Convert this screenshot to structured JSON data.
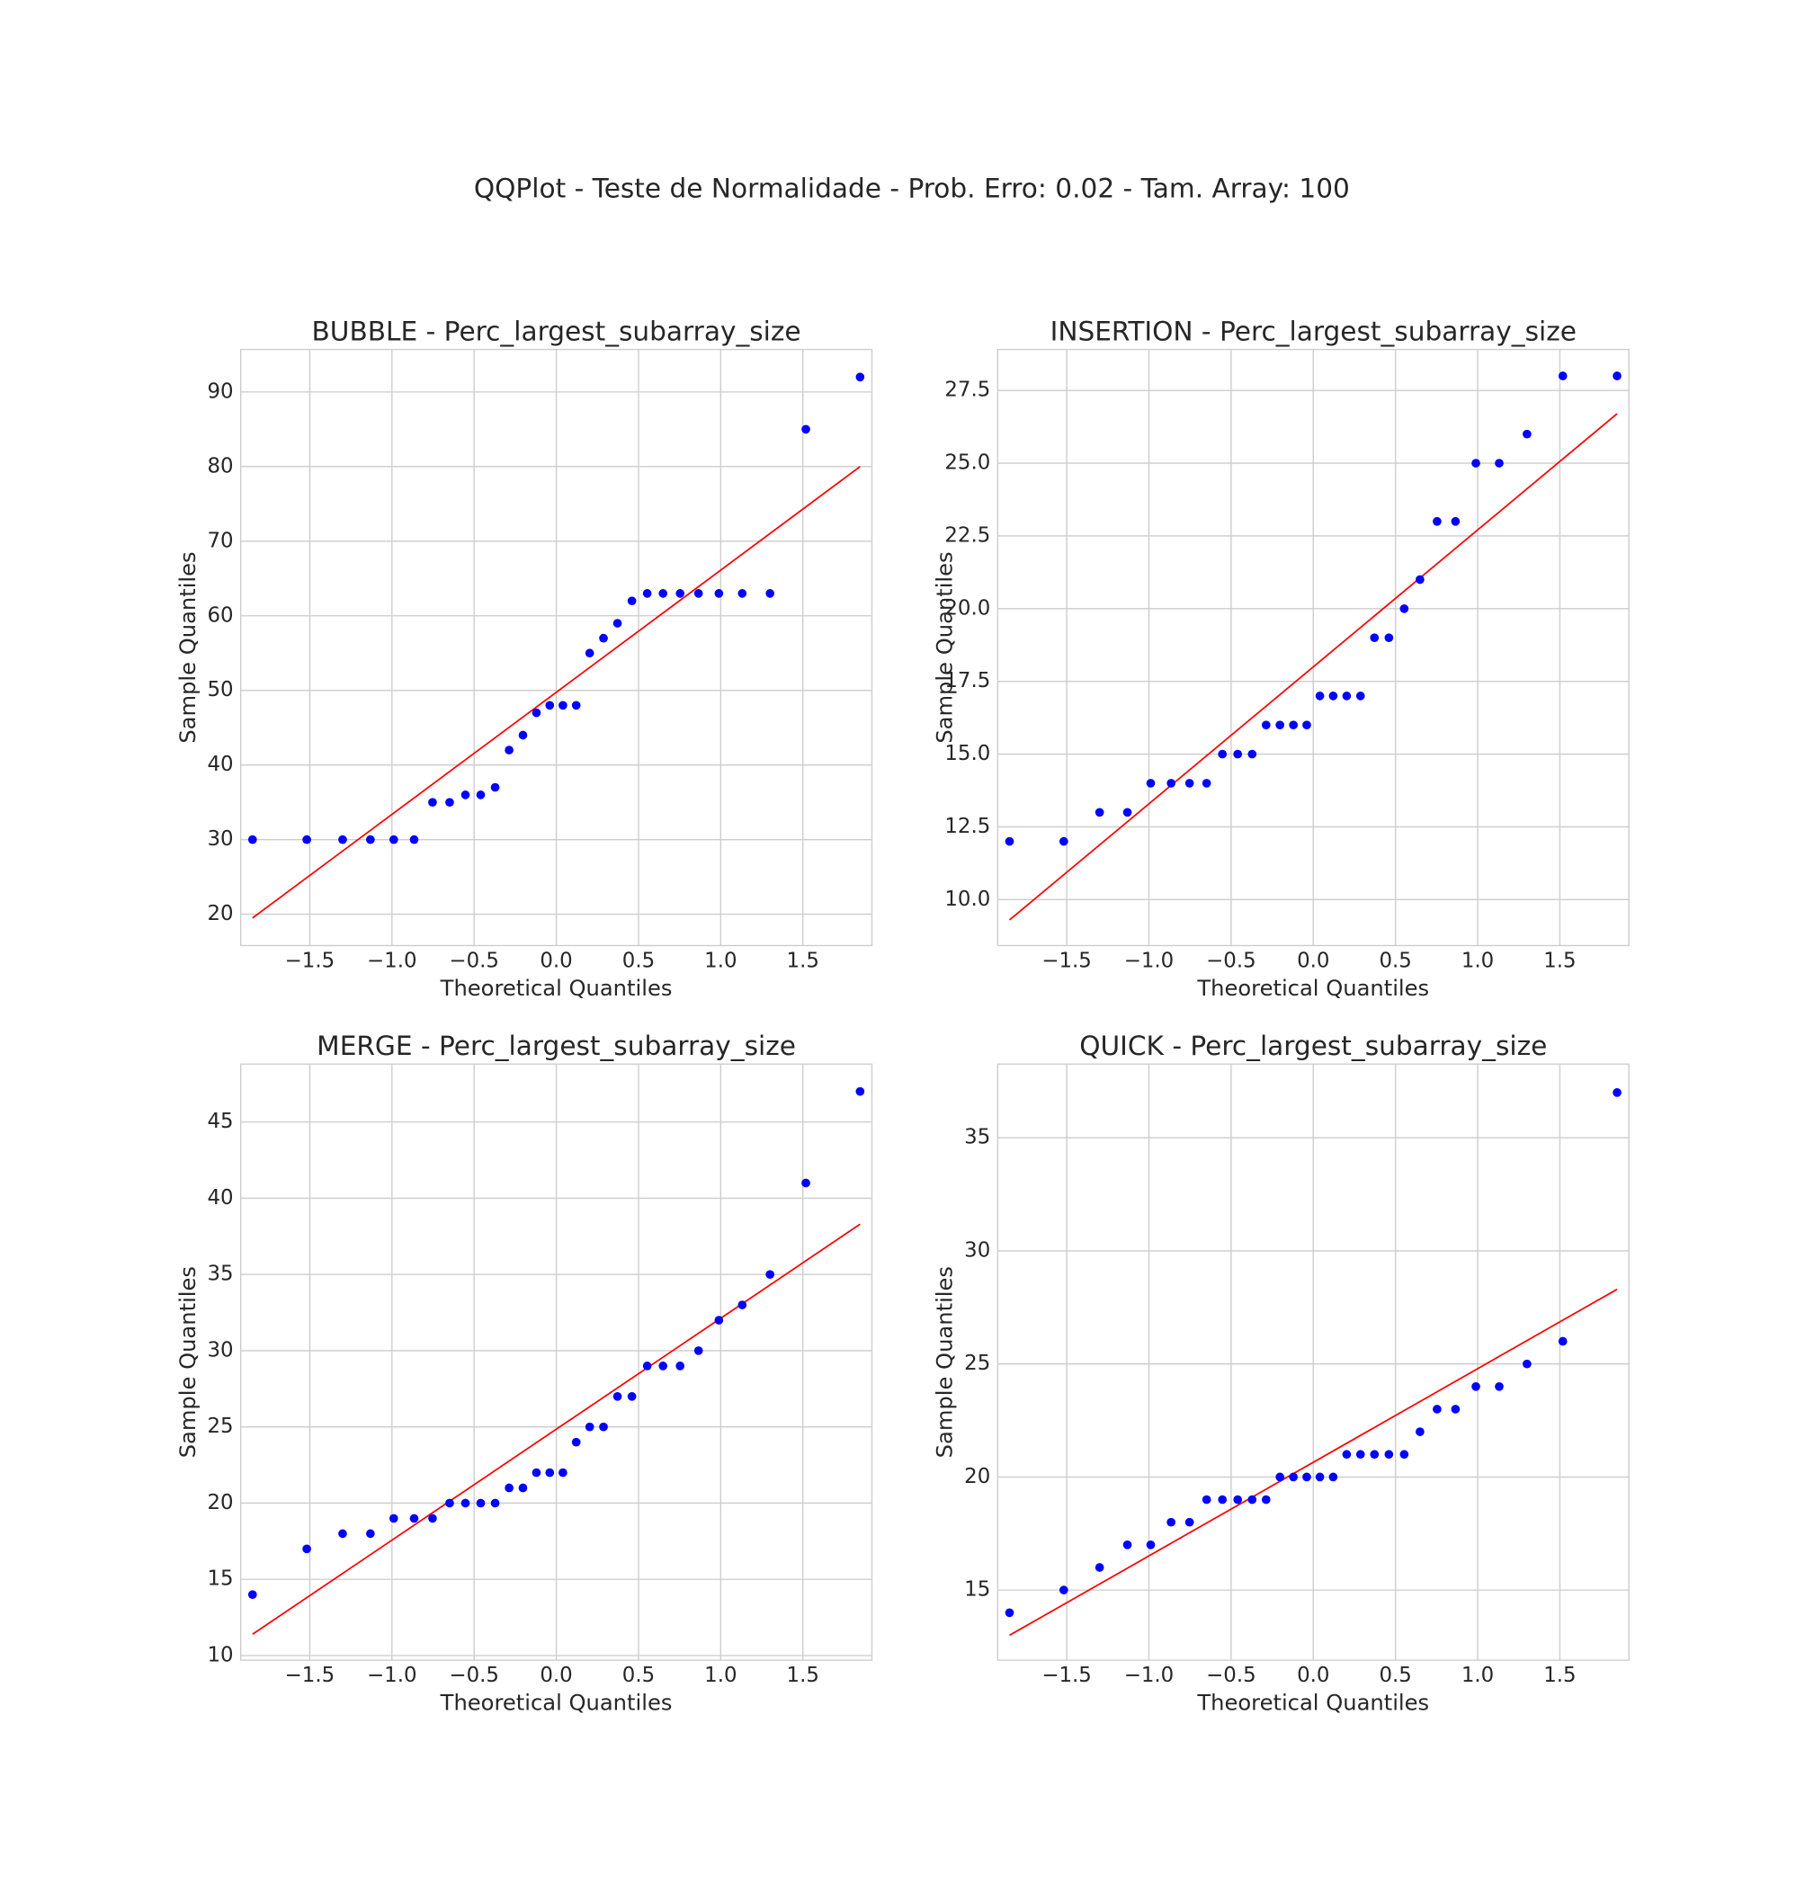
{
  "title": "QQPlot - Teste de Normalidade - Prob. Erro: 0.02 - Tam. Array: 100",
  "chart_data": [
    {
      "type": "scatter",
      "title": "BUBBLE - Perc_largest_subarray_size",
      "xlabel": "Theoretical Quantiles",
      "ylabel": "Sample Quantiles",
      "x": [
        -1.848,
        -1.518,
        -1.3,
        -1.131,
        -0.989,
        -0.865,
        -0.753,
        -0.649,
        -0.553,
        -0.46,
        -0.372,
        -0.287,
        -0.203,
        -0.121,
        -0.04,
        0.04,
        0.121,
        0.203,
        0.287,
        0.372,
        0.46,
        0.553,
        0.649,
        0.753,
        0.865,
        0.989,
        1.131,
        1.3,
        1.518,
        1.848
      ],
      "values": [
        30,
        30,
        30,
        30,
        30,
        30,
        35,
        35,
        36,
        36,
        37,
        42,
        44,
        47,
        48,
        48,
        48,
        55,
        57,
        59,
        62,
        63,
        63,
        63,
        63,
        63,
        63,
        63,
        85,
        92
      ],
      "color": "#0000ff",
      "line": {
        "x": [
          -1.848,
          1.848
        ],
        "y": [
          19.5,
          80.0
        ],
        "color": "#ff0000"
      },
      "xlim": [
        -1.92,
        1.92
      ],
      "ylim": [
        15.8,
        95.7
      ],
      "xticks": [
        {
          "value": -1.5,
          "label": "−1.5"
        },
        {
          "value": -1,
          "label": "−1.0"
        },
        {
          "value": -0.5,
          "label": "−0.5"
        },
        {
          "value": 0,
          "label": "0.0"
        },
        0.5,
        {
          "value": 1,
          "label": "1.0"
        },
        1.5
      ],
      "yticks": [
        20,
        30,
        40,
        50,
        60,
        70,
        80,
        90
      ],
      "grid": true
    },
    {
      "type": "scatter",
      "title": "INSERTION - Perc_largest_subarray_size",
      "xlabel": "Theoretical Quantiles",
      "ylabel": "Sample Quantiles",
      "x": [
        -1.848,
        -1.518,
        -1.3,
        -1.131,
        -0.989,
        -0.865,
        -0.753,
        -0.649,
        -0.553,
        -0.46,
        -0.372,
        -0.287,
        -0.203,
        -0.121,
        -0.04,
        0.04,
        0.121,
        0.203,
        0.287,
        0.372,
        0.46,
        0.553,
        0.649,
        0.753,
        0.865,
        0.989,
        1.131,
        1.3,
        1.518,
        1.848
      ],
      "values": [
        12,
        12,
        13,
        13,
        14,
        14,
        14,
        14,
        15,
        15,
        15,
        16,
        16,
        16,
        16,
        17,
        17,
        17,
        17,
        19,
        19,
        20,
        21,
        23,
        23,
        25,
        25,
        26,
        28,
        28
      ],
      "color": "#0000ff",
      "line": {
        "x": [
          -1.848,
          1.848
        ],
        "y": [
          9.3,
          26.7
        ],
        "color": "#ff0000"
      },
      "xlim": [
        -1.92,
        1.92
      ],
      "ylim": [
        8.42,
        28.91
      ],
      "xticks": [
        {
          "value": -1.5,
          "label": "−1.5"
        },
        {
          "value": -1,
          "label": "−1.0"
        },
        {
          "value": -0.5,
          "label": "−0.5"
        },
        {
          "value": 0,
          "label": "0.0"
        },
        0.5,
        {
          "value": 1,
          "label": "1.0"
        },
        1.5
      ],
      "yticks": [
        {
          "value": 10,
          "label": "10.0"
        },
        12.5,
        {
          "value": 15,
          "label": "15.0"
        },
        17.5,
        {
          "value": 20,
          "label": "20.0"
        },
        22.5,
        {
          "value": 25,
          "label": "25.0"
        },
        27.5
      ],
      "grid": true
    },
    {
      "type": "scatter",
      "title": "MERGE - Perc_largest_subarray_size",
      "xlabel": "Theoretical Quantiles",
      "ylabel": "Sample Quantiles",
      "x": [
        -1.848,
        -1.518,
        -1.3,
        -1.131,
        -0.989,
        -0.865,
        -0.753,
        -0.649,
        -0.553,
        -0.46,
        -0.372,
        -0.287,
        -0.203,
        -0.121,
        -0.04,
        0.04,
        0.121,
        0.203,
        0.287,
        0.372,
        0.46,
        0.553,
        0.649,
        0.753,
        0.865,
        0.989,
        1.131,
        1.3,
        1.518,
        1.848
      ],
      "values": [
        14,
        17,
        18,
        18,
        19,
        19,
        19,
        20,
        20,
        20,
        20,
        21,
        21,
        22,
        22,
        22,
        24,
        25,
        25,
        27,
        27,
        29,
        29,
        29,
        30,
        32,
        33,
        35,
        41,
        47
      ],
      "color": "#0000ff",
      "line": {
        "x": [
          -1.848,
          1.848
        ],
        "y": [
          11.4,
          38.3
        ],
        "color": "#ff0000"
      },
      "xlim": [
        -1.92,
        1.92
      ],
      "ylim": [
        9.7,
        48.8
      ],
      "xticks": [
        {
          "value": -1.5,
          "label": "−1.5"
        },
        {
          "value": -1,
          "label": "−1.0"
        },
        {
          "value": -0.5,
          "label": "−0.5"
        },
        {
          "value": 0,
          "label": "0.0"
        },
        0.5,
        {
          "value": 1,
          "label": "1.0"
        },
        1.5
      ],
      "yticks": [
        10,
        15,
        20,
        25,
        30,
        35,
        40,
        45
      ],
      "grid": true
    },
    {
      "type": "scatter",
      "title": "QUICK - Perc_largest_subarray_size",
      "xlabel": "Theoretical Quantiles",
      "ylabel": "Sample Quantiles",
      "x": [
        -1.848,
        -1.518,
        -1.3,
        -1.131,
        -0.989,
        -0.865,
        -0.753,
        -0.649,
        -0.553,
        -0.46,
        -0.372,
        -0.287,
        -0.203,
        -0.121,
        -0.04,
        0.04,
        0.121,
        0.203,
        0.287,
        0.372,
        0.46,
        0.553,
        0.649,
        0.753,
        0.865,
        0.989,
        1.131,
        1.3,
        1.518,
        1.848
      ],
      "values": [
        14,
        15,
        16,
        17,
        17,
        18,
        18,
        19,
        19,
        19,
        19,
        19,
        20,
        20,
        20,
        20,
        20,
        21,
        21,
        21,
        21,
        21,
        22,
        23,
        23,
        24,
        24,
        25,
        26,
        37
      ],
      "color": "#0000ff",
      "line": {
        "x": [
          -1.848,
          1.848
        ],
        "y": [
          13.0,
          28.3
        ],
        "color": "#ff0000"
      },
      "xlim": [
        -1.92,
        1.92
      ],
      "ylim": [
        11.9,
        38.26
      ],
      "xticks": [
        {
          "value": -1.5,
          "label": "−1.5"
        },
        {
          "value": -1,
          "label": "−1.0"
        },
        {
          "value": -0.5,
          "label": "−0.5"
        },
        {
          "value": 0,
          "label": "0.0"
        },
        0.5,
        {
          "value": 1,
          "label": "1.0"
        },
        1.5
      ],
      "yticks": [
        15,
        20,
        25,
        30,
        35
      ],
      "grid": true
    }
  ]
}
